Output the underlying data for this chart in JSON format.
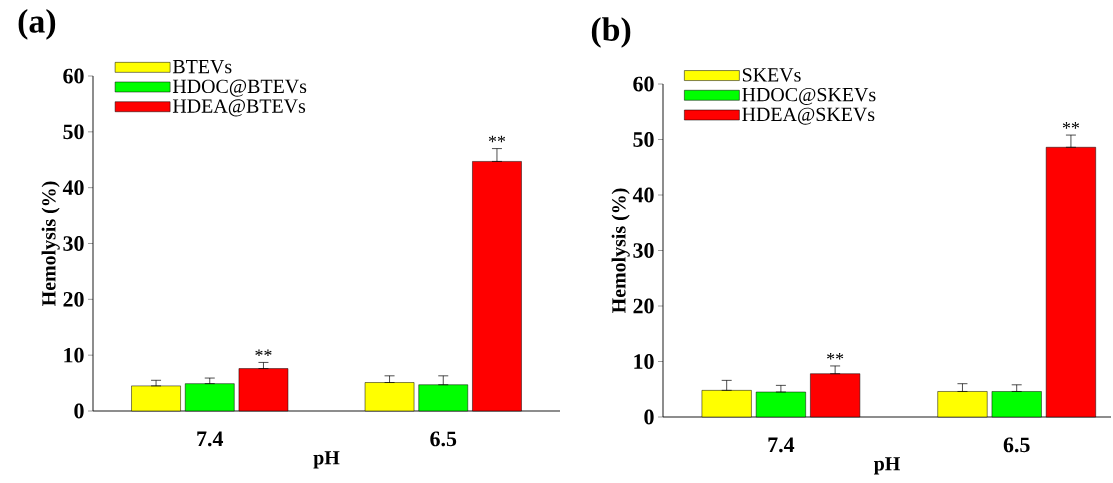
{
  "chart_data": [
    {
      "type": "bar",
      "title": "(a)",
      "xlabel": "pH",
      "ylabel": "Hemolysis (%)",
      "categories": [
        "7.4",
        "6.5"
      ],
      "ylim": [
        0,
        60
      ],
      "yticks": [
        0,
        10,
        20,
        30,
        40,
        50,
        60
      ],
      "legend": "top left",
      "series": [
        {
          "name": "BTEVs",
          "color": "#ffff00",
          "values": [
            4.5,
            5.1
          ],
          "errors": [
            [
              4.5,
              5.5
            ],
            [
              5.1,
              6.3
            ]
          ]
        },
        {
          "name": "HDOC@BTEVs",
          "color": "#00ff00",
          "values": [
            4.9,
            4.7
          ],
          "errors": [
            [
              4.9,
              5.9
            ],
            [
              4.7,
              6.3
            ]
          ]
        },
        {
          "name": "HDEA@BTEVs",
          "color": "#ff0000",
          "values": [
            7.6,
            44.7
          ],
          "errors": [
            [
              7.6,
              8.7
            ],
            [
              44.7,
              47.0
            ]
          ]
        }
      ],
      "annotations": [
        "**",
        "**"
      ]
    },
    {
      "type": "bar",
      "title": "(b)",
      "xlabel": "pH",
      "ylabel": "Hemolysis (%)",
      "categories": [
        "7.4",
        "6.5"
      ],
      "ylim": [
        0,
        60
      ],
      "yticks": [
        0,
        10,
        20,
        30,
        40,
        50,
        60
      ],
      "legend": "top left",
      "series": [
        {
          "name": "SKEVs",
          "color": "#ffff00",
          "values": [
            4.8,
            4.6
          ],
          "errors": [
            [
              4.8,
              6.6
            ],
            [
              4.6,
              6.0
            ]
          ]
        },
        {
          "name": "HDOC@SKEVs",
          "color": "#00ff00",
          "values": [
            4.5,
            4.6
          ],
          "errors": [
            [
              4.5,
              5.7
            ],
            [
              4.6,
              5.8
            ]
          ]
        },
        {
          "name": "HDEA@SKEVs",
          "color": "#ff0000",
          "values": [
            7.8,
            48.6
          ],
          "errors": [
            [
              7.8,
              9.2
            ],
            [
              48.6,
              50.8
            ]
          ]
        }
      ],
      "annotations": [
        "**",
        "**"
      ]
    }
  ]
}
